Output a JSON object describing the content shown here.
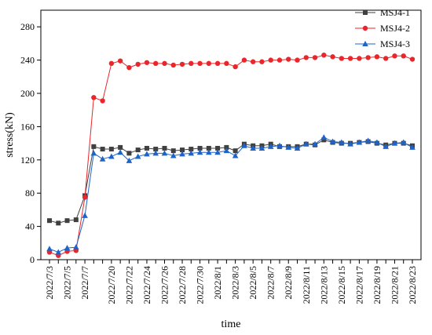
{
  "chart_data": {
    "type": "line",
    "xlabel": "time",
    "ylabel": "stress(kN)",
    "ylim": [
      0,
      300
    ],
    "yticks": [
      0,
      40,
      80,
      120,
      160,
      200,
      240,
      280
    ],
    "legend_position": "top-right",
    "x_tick_labels": [
      "2022/7/3",
      "2022/7/5",
      "2022/7/7",
      "2022/7/20",
      "2022/7/22",
      "2022/7/24",
      "2022/7/26",
      "2022/7/28",
      "2022/7/30",
      "2022/8/1",
      "2022/8/3",
      "2022/8/5",
      "2022/8/7",
      "2022/8/9",
      "2022/8/11",
      "2022/8/13",
      "2022/8/15",
      "2022/8/17",
      "2022/8/19",
      "2022/8/21",
      "2022/8/23"
    ],
    "x": [
      "2022/7/3",
      "2022/7/4",
      "2022/7/5",
      "2022/7/6",
      "2022/7/7",
      "2022/7/8",
      "2022/7/9",
      "2022/7/20",
      "2022/7/21",
      "2022/7/22",
      "2022/7/23",
      "2022/7/24",
      "2022/7/25",
      "2022/7/26",
      "2022/7/27",
      "2022/7/28",
      "2022/7/29",
      "2022/7/30",
      "2022/7/31",
      "2022/8/1",
      "2022/8/2",
      "2022/8/3",
      "2022/8/4",
      "2022/8/5",
      "2022/8/6",
      "2022/8/7",
      "2022/8/8",
      "2022/8/9",
      "2022/8/10",
      "2022/8/11",
      "2022/8/12",
      "2022/8/13",
      "2022/8/14",
      "2022/8/15",
      "2022/8/16",
      "2022/8/17",
      "2022/8/18",
      "2022/8/19",
      "2022/8/20",
      "2022/8/21",
      "2022/8/22",
      "2022/8/23"
    ],
    "series": [
      {
        "name": "MSJ4-1",
        "color": "#404040",
        "marker": "square",
        "values": [
          47,
          44,
          47,
          48,
          77,
          136,
          133,
          133,
          135,
          128,
          132,
          134,
          133,
          134,
          131,
          132,
          133,
          134,
          134,
          134,
          135,
          131,
          139,
          137,
          137,
          139,
          136,
          136,
          136,
          139,
          138,
          144,
          141,
          140,
          140,
          141,
          142,
          140,
          138,
          140,
          140,
          137
        ]
      },
      {
        "name": "MSJ4-2",
        "color": "#e8262b",
        "marker": "circle",
        "values": [
          9,
          5,
          10,
          11,
          75,
          195,
          191,
          236,
          239,
          231,
          235,
          237,
          236,
          236,
          234,
          235,
          236,
          236,
          236,
          236,
          236,
          232,
          240,
          238,
          238,
          240,
          240,
          241,
          240,
          243,
          243,
          246,
          244,
          242,
          242,
          242,
          243,
          244,
          242,
          245,
          245,
          241
        ]
      },
      {
        "name": "MSJ4-3",
        "color": "#1e64c8",
        "marker": "triangle",
        "values": [
          13,
          9,
          14,
          15,
          53,
          128,
          121,
          124,
          129,
          119,
          124,
          127,
          128,
          128,
          125,
          127,
          128,
          129,
          129,
          129,
          131,
          125,
          137,
          134,
          134,
          136,
          137,
          135,
          134,
          139,
          139,
          147,
          142,
          141,
          139,
          141,
          143,
          141,
          136,
          140,
          141,
          135
        ]
      }
    ]
  }
}
